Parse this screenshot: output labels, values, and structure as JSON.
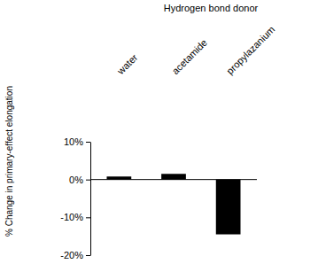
{
  "chart_data": {
    "type": "bar",
    "title": "Hydrogen bond donor",
    "categories": [
      "water",
      "acetamide",
      "propylazanium"
    ],
    "values": [
      0.8,
      1.5,
      -14.5
    ],
    "color": "#000000",
    "y_label": "% Change in primary-effect elongation",
    "ylim": [
      -20,
      10
    ],
    "yticks": [
      {
        "value": -20,
        "label": "-20%"
      },
      {
        "value": -10,
        "label": "-10%"
      },
      {
        "value": 0,
        "label": "0%"
      },
      {
        "value": 10,
        "label": "10%"
      }
    ],
    "grid": false
  }
}
